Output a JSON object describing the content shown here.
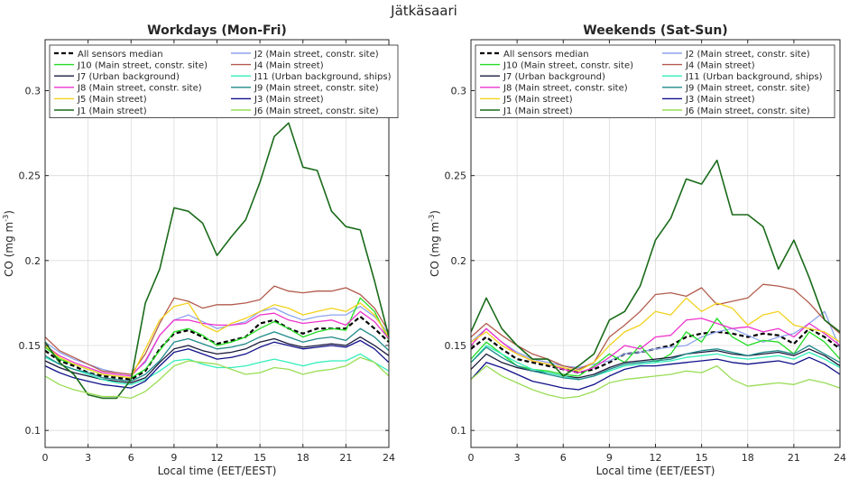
{
  "figure_title": "Jätkäsaari",
  "chart_data": [
    {
      "type": "line",
      "title": "Workdays (Mon-Fri)",
      "xlabel": "Local time (EET/EEST)",
      "ylabel": "CO (mg m",
      "ylabel_sup": "-3",
      "ylabel_close": ")",
      "xlim": [
        0,
        24
      ],
      "ylim": [
        0.09,
        0.33
      ],
      "xticks": [
        0,
        3,
        6,
        9,
        12,
        15,
        18,
        21,
        24
      ],
      "xtick_labels": [
        "0",
        "3",
        "6",
        "9",
        "12",
        "15",
        "18",
        "21",
        "24"
      ],
      "yticks": [
        0.1,
        0.15,
        0.2,
        0.25,
        0.3
      ],
      "ytick_labels": [
        "0.1",
        "0.15",
        "0.2",
        "0.25",
        "0.3"
      ],
      "grid": true,
      "legend": "top, two columns",
      "x": [
        0,
        1,
        2,
        3,
        4,
        5,
        6,
        7,
        8,
        9,
        10,
        11,
        12,
        13,
        14,
        15,
        16,
        17,
        18,
        19,
        20,
        21,
        22,
        23,
        24
      ],
      "series": [
        {
          "name": "All sensors median",
          "color": "#000000",
          "dash": true,
          "width": 2.2,
          "values": [
            0.147,
            0.141,
            0.138,
            0.134,
            0.132,
            0.131,
            0.13,
            0.135,
            0.148,
            0.157,
            0.159,
            0.155,
            0.151,
            0.153,
            0.155,
            0.163,
            0.165,
            0.16,
            0.157,
            0.16,
            0.16,
            0.16,
            0.167,
            0.16,
            0.152
          ]
        },
        {
          "name": "J2 (Main street, constr. site)",
          "color": "#8ea3ee",
          "values": [
            0.152,
            0.146,
            0.142,
            0.139,
            0.136,
            0.134,
            0.133,
            0.14,
            0.156,
            0.165,
            0.168,
            0.164,
            0.16,
            0.162,
            0.164,
            0.17,
            0.172,
            0.168,
            0.165,
            0.167,
            0.168,
            0.168,
            0.173,
            0.167,
            0.157
          ]
        },
        {
          "name": "J10 (Main street, constr. site)",
          "color": "#22dd22",
          "values": [
            0.149,
            0.142,
            0.139,
            0.136,
            0.133,
            0.132,
            0.131,
            0.136,
            0.147,
            0.158,
            0.16,
            0.156,
            0.15,
            0.152,
            0.155,
            0.16,
            0.164,
            0.16,
            0.155,
            0.158,
            0.16,
            0.159,
            0.178,
            0.17,
            0.153
          ]
        },
        {
          "name": "J4 (Main street)",
          "color": "#b25b4c",
          "values": [
            0.155,
            0.147,
            0.143,
            0.139,
            0.135,
            0.134,
            0.133,
            0.145,
            0.163,
            0.178,
            0.176,
            0.172,
            0.174,
            0.174,
            0.175,
            0.177,
            0.185,
            0.182,
            0.181,
            0.182,
            0.182,
            0.184,
            0.18,
            0.172,
            0.158
          ]
        },
        {
          "name": "J7 (Urban background)",
          "color": "#1a1a3d",
          "values": [
            0.141,
            0.137,
            0.134,
            0.132,
            0.13,
            0.129,
            0.128,
            0.131,
            0.14,
            0.148,
            0.15,
            0.147,
            0.145,
            0.146,
            0.148,
            0.152,
            0.154,
            0.151,
            0.149,
            0.15,
            0.151,
            0.15,
            0.155,
            0.15,
            0.144
          ]
        },
        {
          "name": "J11 (Urban background, ships)",
          "color": "#33eebb",
          "values": [
            0.143,
            0.139,
            0.136,
            0.133,
            0.13,
            0.128,
            0.127,
            0.13,
            0.135,
            0.141,
            0.142,
            0.139,
            0.137,
            0.137,
            0.138,
            0.14,
            0.142,
            0.14,
            0.138,
            0.14,
            0.141,
            0.141,
            0.145,
            0.14,
            0.135
          ]
        },
        {
          "name": "J8 (Main street, constr. site)",
          "color": "#ee33cc",
          "values": [
            0.15,
            0.144,
            0.14,
            0.137,
            0.134,
            0.133,
            0.132,
            0.141,
            0.156,
            0.165,
            0.165,
            0.163,
            0.162,
            0.162,
            0.163,
            0.168,
            0.169,
            0.165,
            0.163,
            0.164,
            0.165,
            0.162,
            0.17,
            0.164,
            0.154
          ]
        },
        {
          "name": "J9 (Main street, constr. site)",
          "color": "#1f8a8a",
          "values": [
            0.144,
            0.139,
            0.136,
            0.134,
            0.131,
            0.13,
            0.129,
            0.133,
            0.141,
            0.152,
            0.154,
            0.151,
            0.148,
            0.149,
            0.151,
            0.155,
            0.158,
            0.155,
            0.152,
            0.154,
            0.155,
            0.153,
            0.16,
            0.155,
            0.147
          ]
        },
        {
          "name": "J5 (Main street)",
          "color": "#f2d21e",
          "values": [
            0.15,
            0.143,
            0.139,
            0.136,
            0.133,
            0.132,
            0.131,
            0.148,
            0.165,
            0.173,
            0.175,
            0.162,
            0.158,
            0.163,
            0.166,
            0.17,
            0.174,
            0.172,
            0.168,
            0.17,
            0.172,
            0.17,
            0.175,
            0.168,
            0.155
          ]
        },
        {
          "name": "J3 (Main street)",
          "color": "#10108a",
          "values": [
            0.138,
            0.134,
            0.131,
            0.129,
            0.127,
            0.126,
            0.125,
            0.129,
            0.138,
            0.146,
            0.148,
            0.145,
            0.142,
            0.143,
            0.145,
            0.149,
            0.152,
            0.15,
            0.148,
            0.149,
            0.15,
            0.149,
            0.153,
            0.148,
            0.14
          ]
        },
        {
          "name": "J1 (Main street)",
          "color": "#1a6b1a",
          "width": 1.6,
          "values": [
            0.152,
            0.14,
            0.133,
            0.121,
            0.119,
            0.119,
            0.13,
            0.175,
            0.195,
            0.231,
            0.229,
            0.222,
            0.203,
            0.214,
            0.224,
            0.246,
            0.273,
            0.281,
            0.255,
            0.253,
            0.229,
            0.22,
            0.218,
            0.188,
            0.155
          ]
        },
        {
          "name": "J6 (Main street, constr. site)",
          "color": "#99dd55",
          "values": [
            0.132,
            0.127,
            0.124,
            0.122,
            0.12,
            0.12,
            0.119,
            0.123,
            0.13,
            0.138,
            0.141,
            0.14,
            0.139,
            0.136,
            0.133,
            0.134,
            0.137,
            0.136,
            0.133,
            0.135,
            0.136,
            0.138,
            0.143,
            0.14,
            0.132
          ]
        }
      ]
    },
    {
      "type": "line",
      "title": "Weekends (Sat-Sun)",
      "xlabel": "Local time (EET/EEST)",
      "ylabel": "CO (mg m",
      "ylabel_sup": "-3",
      "ylabel_close": ")",
      "xlim": [
        0,
        24
      ],
      "ylim": [
        0.09,
        0.33
      ],
      "xticks": [
        0,
        3,
        6,
        9,
        12,
        15,
        18,
        21,
        24
      ],
      "xtick_labels": [
        "0",
        "3",
        "6",
        "9",
        "12",
        "15",
        "18",
        "21",
        "24"
      ],
      "yticks": [
        0.1,
        0.15,
        0.2,
        0.25,
        0.3
      ],
      "ytick_labels": [
        "0.1",
        "0.15",
        "0.2",
        "0.25",
        "0.3"
      ],
      "grid": true,
      "legend": "top, two columns",
      "x": [
        0,
        1,
        2,
        3,
        4,
        5,
        6,
        7,
        8,
        9,
        10,
        11,
        12,
        13,
        14,
        15,
        16,
        17,
        18,
        19,
        20,
        21,
        22,
        23,
        24
      ],
      "series": [
        {
          "name": "All sensors median",
          "color": "#000000",
          "dash": true,
          "width": 2.2,
          "values": [
            0.148,
            0.155,
            0.148,
            0.142,
            0.14,
            0.138,
            0.136,
            0.134,
            0.136,
            0.14,
            0.145,
            0.146,
            0.148,
            0.15,
            0.155,
            0.157,
            0.158,
            0.157,
            0.155,
            0.157,
            0.156,
            0.151,
            0.16,
            0.155,
            0.148
          ]
        },
        {
          "name": "J2 (Main street, constr. site)",
          "color": "#8ea3ee",
          "values": [
            0.152,
            0.16,
            0.152,
            0.146,
            0.142,
            0.14,
            0.138,
            0.137,
            0.139,
            0.141,
            0.145,
            0.146,
            0.148,
            0.149,
            0.15,
            0.155,
            0.158,
            0.16,
            0.156,
            0.152,
            0.155,
            0.157,
            0.163,
            0.17,
            0.148
          ]
        },
        {
          "name": "J10 (Main street, constr. site)",
          "color": "#22dd22",
          "values": [
            0.142,
            0.152,
            0.145,
            0.138,
            0.136,
            0.135,
            0.133,
            0.132,
            0.138,
            0.145,
            0.14,
            0.15,
            0.14,
            0.145,
            0.158,
            0.152,
            0.166,
            0.155,
            0.15,
            0.153,
            0.152,
            0.145,
            0.158,
            0.152,
            0.142
          ]
        },
        {
          "name": "J4 (Main street)",
          "color": "#b25b4c",
          "values": [
            0.155,
            0.163,
            0.156,
            0.15,
            0.145,
            0.142,
            0.138,
            0.136,
            0.14,
            0.155,
            0.162,
            0.17,
            0.18,
            0.181,
            0.179,
            0.184,
            0.174,
            0.176,
            0.178,
            0.186,
            0.185,
            0.183,
            0.175,
            0.165,
            0.157
          ]
        },
        {
          "name": "J7 (Urban background)",
          "color": "#1a1a3d",
          "values": [
            0.136,
            0.145,
            0.14,
            0.137,
            0.135,
            0.134,
            0.132,
            0.131,
            0.133,
            0.137,
            0.14,
            0.141,
            0.142,
            0.143,
            0.145,
            0.146,
            0.147,
            0.145,
            0.144,
            0.145,
            0.146,
            0.144,
            0.148,
            0.144,
            0.138
          ]
        },
        {
          "name": "J11 (Urban background, ships)",
          "color": "#33eebb",
          "values": [
            0.14,
            0.15,
            0.145,
            0.14,
            0.136,
            0.134,
            0.132,
            0.13,
            0.132,
            0.135,
            0.138,
            0.139,
            0.14,
            0.141,
            0.143,
            0.144,
            0.145,
            0.143,
            0.142,
            0.143,
            0.144,
            0.142,
            0.146,
            0.142,
            0.137
          ]
        },
        {
          "name": "J8 (Main street, constr. site)",
          "color": "#ee33cc",
          "values": [
            0.15,
            0.16,
            0.152,
            0.145,
            0.141,
            0.139,
            0.136,
            0.134,
            0.137,
            0.143,
            0.15,
            0.148,
            0.155,
            0.156,
            0.165,
            0.166,
            0.163,
            0.16,
            0.161,
            0.158,
            0.16,
            0.155,
            0.163,
            0.157,
            0.15
          ]
        },
        {
          "name": "J9 (Main street, constr. site)",
          "color": "#1f8a8a",
          "values": [
            0.14,
            0.149,
            0.143,
            0.138,
            0.135,
            0.133,
            0.131,
            0.13,
            0.132,
            0.136,
            0.139,
            0.14,
            0.141,
            0.142,
            0.145,
            0.147,
            0.148,
            0.146,
            0.144,
            0.146,
            0.147,
            0.145,
            0.15,
            0.145,
            0.14
          ]
        },
        {
          "name": "J5 (Main street)",
          "color": "#f2d21e",
          "values": [
            0.152,
            0.158,
            0.15,
            0.145,
            0.141,
            0.139,
            0.137,
            0.135,
            0.14,
            0.15,
            0.158,
            0.162,
            0.17,
            0.168,
            0.178,
            0.17,
            0.175,
            0.172,
            0.162,
            0.168,
            0.17,
            0.162,
            0.16,
            0.158,
            0.152
          ]
        },
        {
          "name": "J3 (Main street)",
          "color": "#10108a",
          "values": [
            0.13,
            0.14,
            0.137,
            0.133,
            0.129,
            0.127,
            0.125,
            0.124,
            0.127,
            0.132,
            0.136,
            0.138,
            0.138,
            0.139,
            0.14,
            0.141,
            0.142,
            0.14,
            0.139,
            0.14,
            0.141,
            0.139,
            0.143,
            0.139,
            0.133
          ]
        },
        {
          "name": "J1 (Main street)",
          "color": "#1a6b1a",
          "width": 1.6,
          "values": [
            0.158,
            0.178,
            0.16,
            0.15,
            0.142,
            0.142,
            0.132,
            0.138,
            0.145,
            0.165,
            0.17,
            0.185,
            0.212,
            0.225,
            0.248,
            0.245,
            0.259,
            0.227,
            0.227,
            0.22,
            0.195,
            0.212,
            0.19,
            0.165,
            0.158
          ]
        },
        {
          "name": "J6 (Main street, constr. site)",
          "color": "#99dd55",
          "values": [
            0.13,
            0.138,
            0.132,
            0.128,
            0.124,
            0.121,
            0.119,
            0.12,
            0.123,
            0.128,
            0.13,
            0.131,
            0.132,
            0.133,
            0.135,
            0.134,
            0.138,
            0.13,
            0.126,
            0.127,
            0.128,
            0.127,
            0.13,
            0.128,
            0.125
          ]
        }
      ]
    }
  ]
}
